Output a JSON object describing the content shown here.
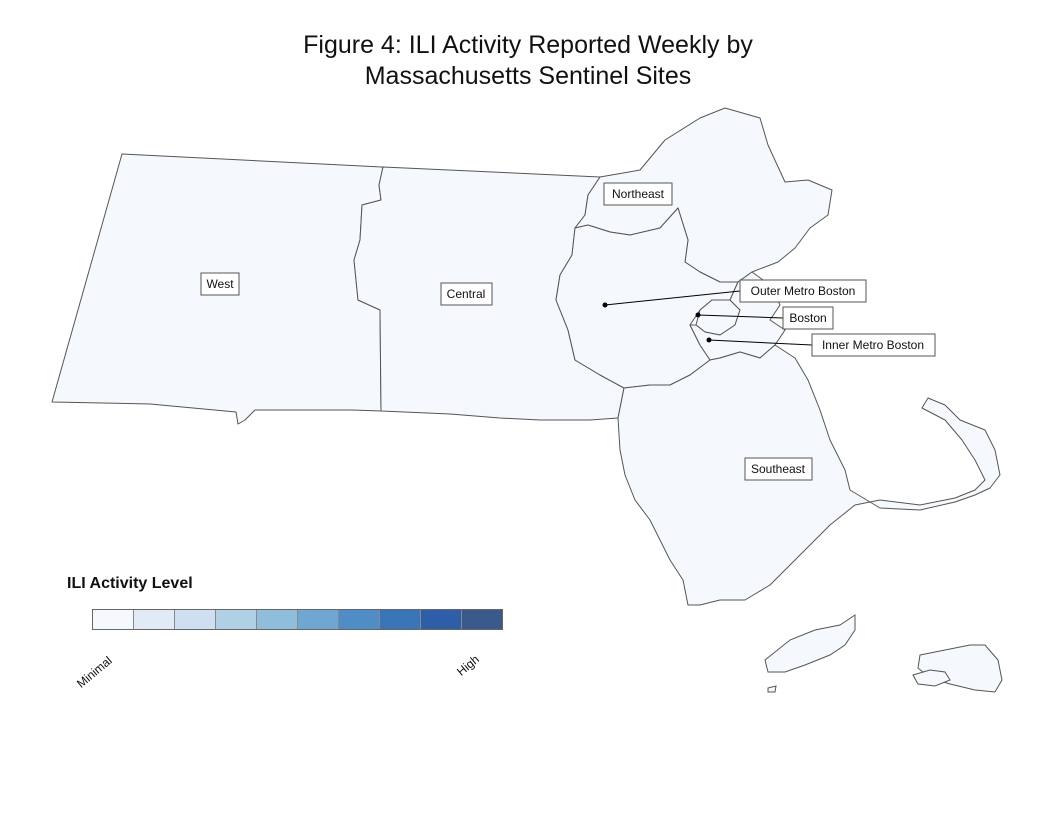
{
  "title": {
    "line1": "Figure 4: ILI Activity Reported Weekly by",
    "line2": "Massachusetts Sentinel Sites"
  },
  "regions": {
    "west": "West",
    "central": "Central",
    "northeast": "Northeast",
    "outer_metro_boston": "Outer Metro Boston",
    "boston": "Boston",
    "inner_metro_boston": "Inner Metro Boston",
    "southeast": "Southeast"
  },
  "legend": {
    "title": "ILI Activity Level",
    "min_label": "Minimal",
    "max_label": "High",
    "colors": [
      "#f5f9fd",
      "#e1ebf6",
      "#cddff0",
      "#b0d0e6",
      "#8ebedc",
      "#6ea8d2",
      "#4f8dc7",
      "#3a75b8",
      "#2f5ea8",
      "#3a5a8c"
    ]
  },
  "colors": {
    "region_fill": "#f5f9fd",
    "border": "#555555"
  }
}
